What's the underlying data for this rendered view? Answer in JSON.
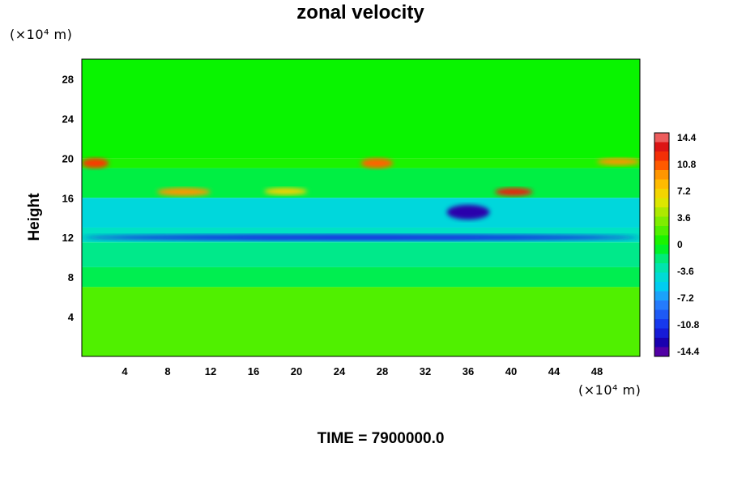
{
  "chart_data": {
    "type": "heatmap",
    "title": "zonal velocity",
    "xlabel": "",
    "ylabel": "Height",
    "x_unit": "(×10⁴ m)",
    "y_unit": "(×10⁴ m)",
    "xlim": [
      0,
      52
    ],
    "ylim": [
      0,
      30
    ],
    "x_ticks": [
      "4",
      "8",
      "12",
      "16",
      "20",
      "24",
      "28",
      "32",
      "36",
      "40",
      "44",
      "48"
    ],
    "y_ticks": [
      "4",
      "8",
      "12",
      "16",
      "20",
      "24",
      "28"
    ],
    "colorbar": {
      "min": -14.4,
      "max": 14.4,
      "levels": 24,
      "tick_labels": [
        "14.4",
        "10.8",
        "7.2",
        "3.6",
        "0",
        "-3.6",
        "-7.2",
        "-10.8",
        "-14.4"
      ]
    },
    "annotation": "TIME = 7900000.0",
    "features": [
      {
        "x": [
          0,
          2.5
        ],
        "y": [
          19,
          20
        ],
        "value": 11
      },
      {
        "x": [
          7,
          12
        ],
        "y": [
          16.2,
          17
        ],
        "value": 9
      },
      {
        "x": [
          17,
          21
        ],
        "y": [
          16.3,
          17
        ],
        "value": 7
      },
      {
        "x": [
          26,
          29
        ],
        "y": [
          19,
          20
        ],
        "value": 10
      },
      {
        "x": [
          34,
          38
        ],
        "y": [
          13.8,
          15.3
        ],
        "value": -13
      },
      {
        "x": [
          38.5,
          42
        ],
        "y": [
          16.2,
          17
        ],
        "value": 12
      },
      {
        "x": [
          0,
          52
        ],
        "y": [
          11.7,
          12.3
        ],
        "value": -11
      },
      {
        "x": [
          48,
          52
        ],
        "y": [
          19.3,
          20
        ],
        "value": 9
      }
    ]
  }
}
